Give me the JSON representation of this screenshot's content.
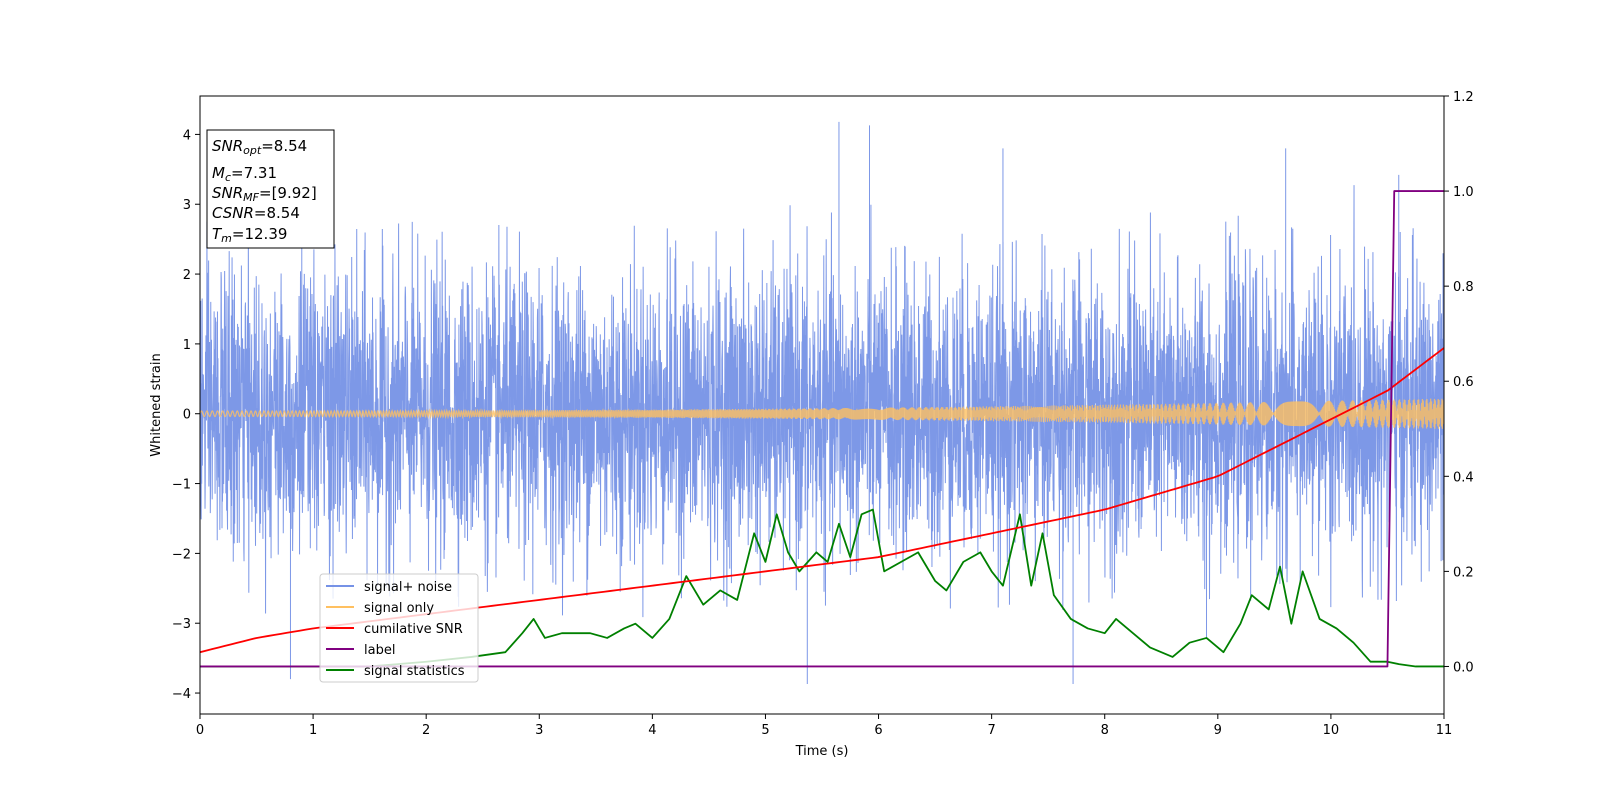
{
  "chart_data": {
    "type": "line",
    "xlabel": "Time (s)",
    "ylabel": "Whitened strain",
    "xlim": [
      0,
      11
    ],
    "ylim_left": [
      -4.3,
      4.55
    ],
    "ylim_right": [
      -0.1,
      1.2
    ],
    "x_ticks": [
      "0",
      "1",
      "2",
      "3",
      "4",
      "5",
      "6",
      "7",
      "8",
      "9",
      "10",
      "11"
    ],
    "y_ticks_left": [
      "−4",
      "−3",
      "−2",
      "−1",
      "0",
      "1",
      "2",
      "3",
      "4"
    ],
    "y_ticks_right": [
      "0.0",
      "0.2",
      "0.4",
      "0.6",
      "0.8",
      "1.0",
      "1.2"
    ],
    "grid": false,
    "legend_position": "lower-left",
    "info_box": {
      "snr_opt": {
        "name": "SNR",
        "sub": "opt",
        "value": "=8.54"
      },
      "mc": {
        "name": "M",
        "sub": "c",
        "value": "=7.31"
      },
      "snr_mf": {
        "name": "SNR",
        "sub": "MF",
        "value": "=[9.92]"
      },
      "csnr": {
        "name": "CSNR",
        "sub": "",
        "value": "=8.54"
      },
      "tm": {
        "name": "T",
        "sub": "m",
        "value": "=12.39"
      }
    },
    "series": [
      {
        "name": "signal+ noise",
        "axis": "left",
        "color": "#7692e6",
        "style": "noise",
        "noise_sigma": 1.0,
        "peaks_high": [
          [
            5.65,
            4.18
          ],
          [
            5.92,
            4.13
          ],
          [
            7.1,
            3.8
          ],
          [
            9.6,
            3.8
          ],
          [
            10.6,
            3.42
          ],
          [
            0.9,
            3.1
          ]
        ],
        "peaks_low": [
          [
            5.37,
            -3.87
          ],
          [
            7.72,
            -3.87
          ],
          [
            0.8,
            -3.8
          ],
          [
            8.9,
            -3.2
          ]
        ]
      },
      {
        "name": "signal only",
        "axis": "left",
        "color": "#ffc060",
        "style": "chirp",
        "amp_start": 0.04,
        "amp_end": 0.22
      },
      {
        "name": "cumilative SNR",
        "axis": "right",
        "color": "#ff0000",
        "x": [
          0,
          0.5,
          1,
          2,
          3,
          4,
          5,
          6,
          7,
          8,
          9,
          10,
          10.5,
          11
        ],
        "values": [
          0.03,
          0.06,
          0.08,
          0.11,
          0.14,
          0.17,
          0.2,
          0.23,
          0.28,
          0.33,
          0.4,
          0.52,
          0.58,
          0.67
        ]
      },
      {
        "name": "label",
        "axis": "right",
        "color": "#800080",
        "x": [
          0,
          10.5,
          10.56,
          11
        ],
        "values": [
          0,
          0,
          1,
          1
        ]
      },
      {
        "name": "signal statistics",
        "axis": "right",
        "color": "#008000",
        "x": [
          0,
          1.5,
          2.0,
          2.4,
          2.7,
          2.85,
          2.95,
          3.05,
          3.2,
          3.45,
          3.6,
          3.75,
          3.85,
          4.0,
          4.15,
          4.3,
          4.45,
          4.6,
          4.75,
          4.9,
          5.0,
          5.1,
          5.2,
          5.3,
          5.45,
          5.55,
          5.65,
          5.75,
          5.85,
          5.95,
          6.05,
          6.2,
          6.35,
          6.5,
          6.6,
          6.75,
          6.9,
          7.0,
          7.1,
          7.25,
          7.35,
          7.45,
          7.55,
          7.7,
          7.85,
          8.0,
          8.1,
          8.25,
          8.4,
          8.6,
          8.75,
          8.9,
          9.05,
          9.2,
          9.3,
          9.45,
          9.55,
          9.65,
          9.75,
          9.9,
          10.05,
          10.2,
          10.35,
          10.5,
          10.6,
          10.75,
          10.9,
          11.0
        ],
        "values": [
          0.0,
          0.0,
          0.01,
          0.02,
          0.03,
          0.07,
          0.1,
          0.06,
          0.07,
          0.07,
          0.06,
          0.08,
          0.09,
          0.06,
          0.1,
          0.19,
          0.13,
          0.16,
          0.14,
          0.28,
          0.22,
          0.32,
          0.24,
          0.2,
          0.24,
          0.22,
          0.3,
          0.23,
          0.32,
          0.33,
          0.2,
          0.22,
          0.24,
          0.18,
          0.16,
          0.22,
          0.24,
          0.2,
          0.17,
          0.32,
          0.17,
          0.28,
          0.15,
          0.1,
          0.08,
          0.07,
          0.1,
          0.07,
          0.04,
          0.02,
          0.05,
          0.06,
          0.03,
          0.09,
          0.15,
          0.12,
          0.21,
          0.09,
          0.2,
          0.1,
          0.08,
          0.05,
          0.01,
          0.01,
          0.005,
          0.0,
          0.0,
          0.0
        ]
      }
    ]
  }
}
